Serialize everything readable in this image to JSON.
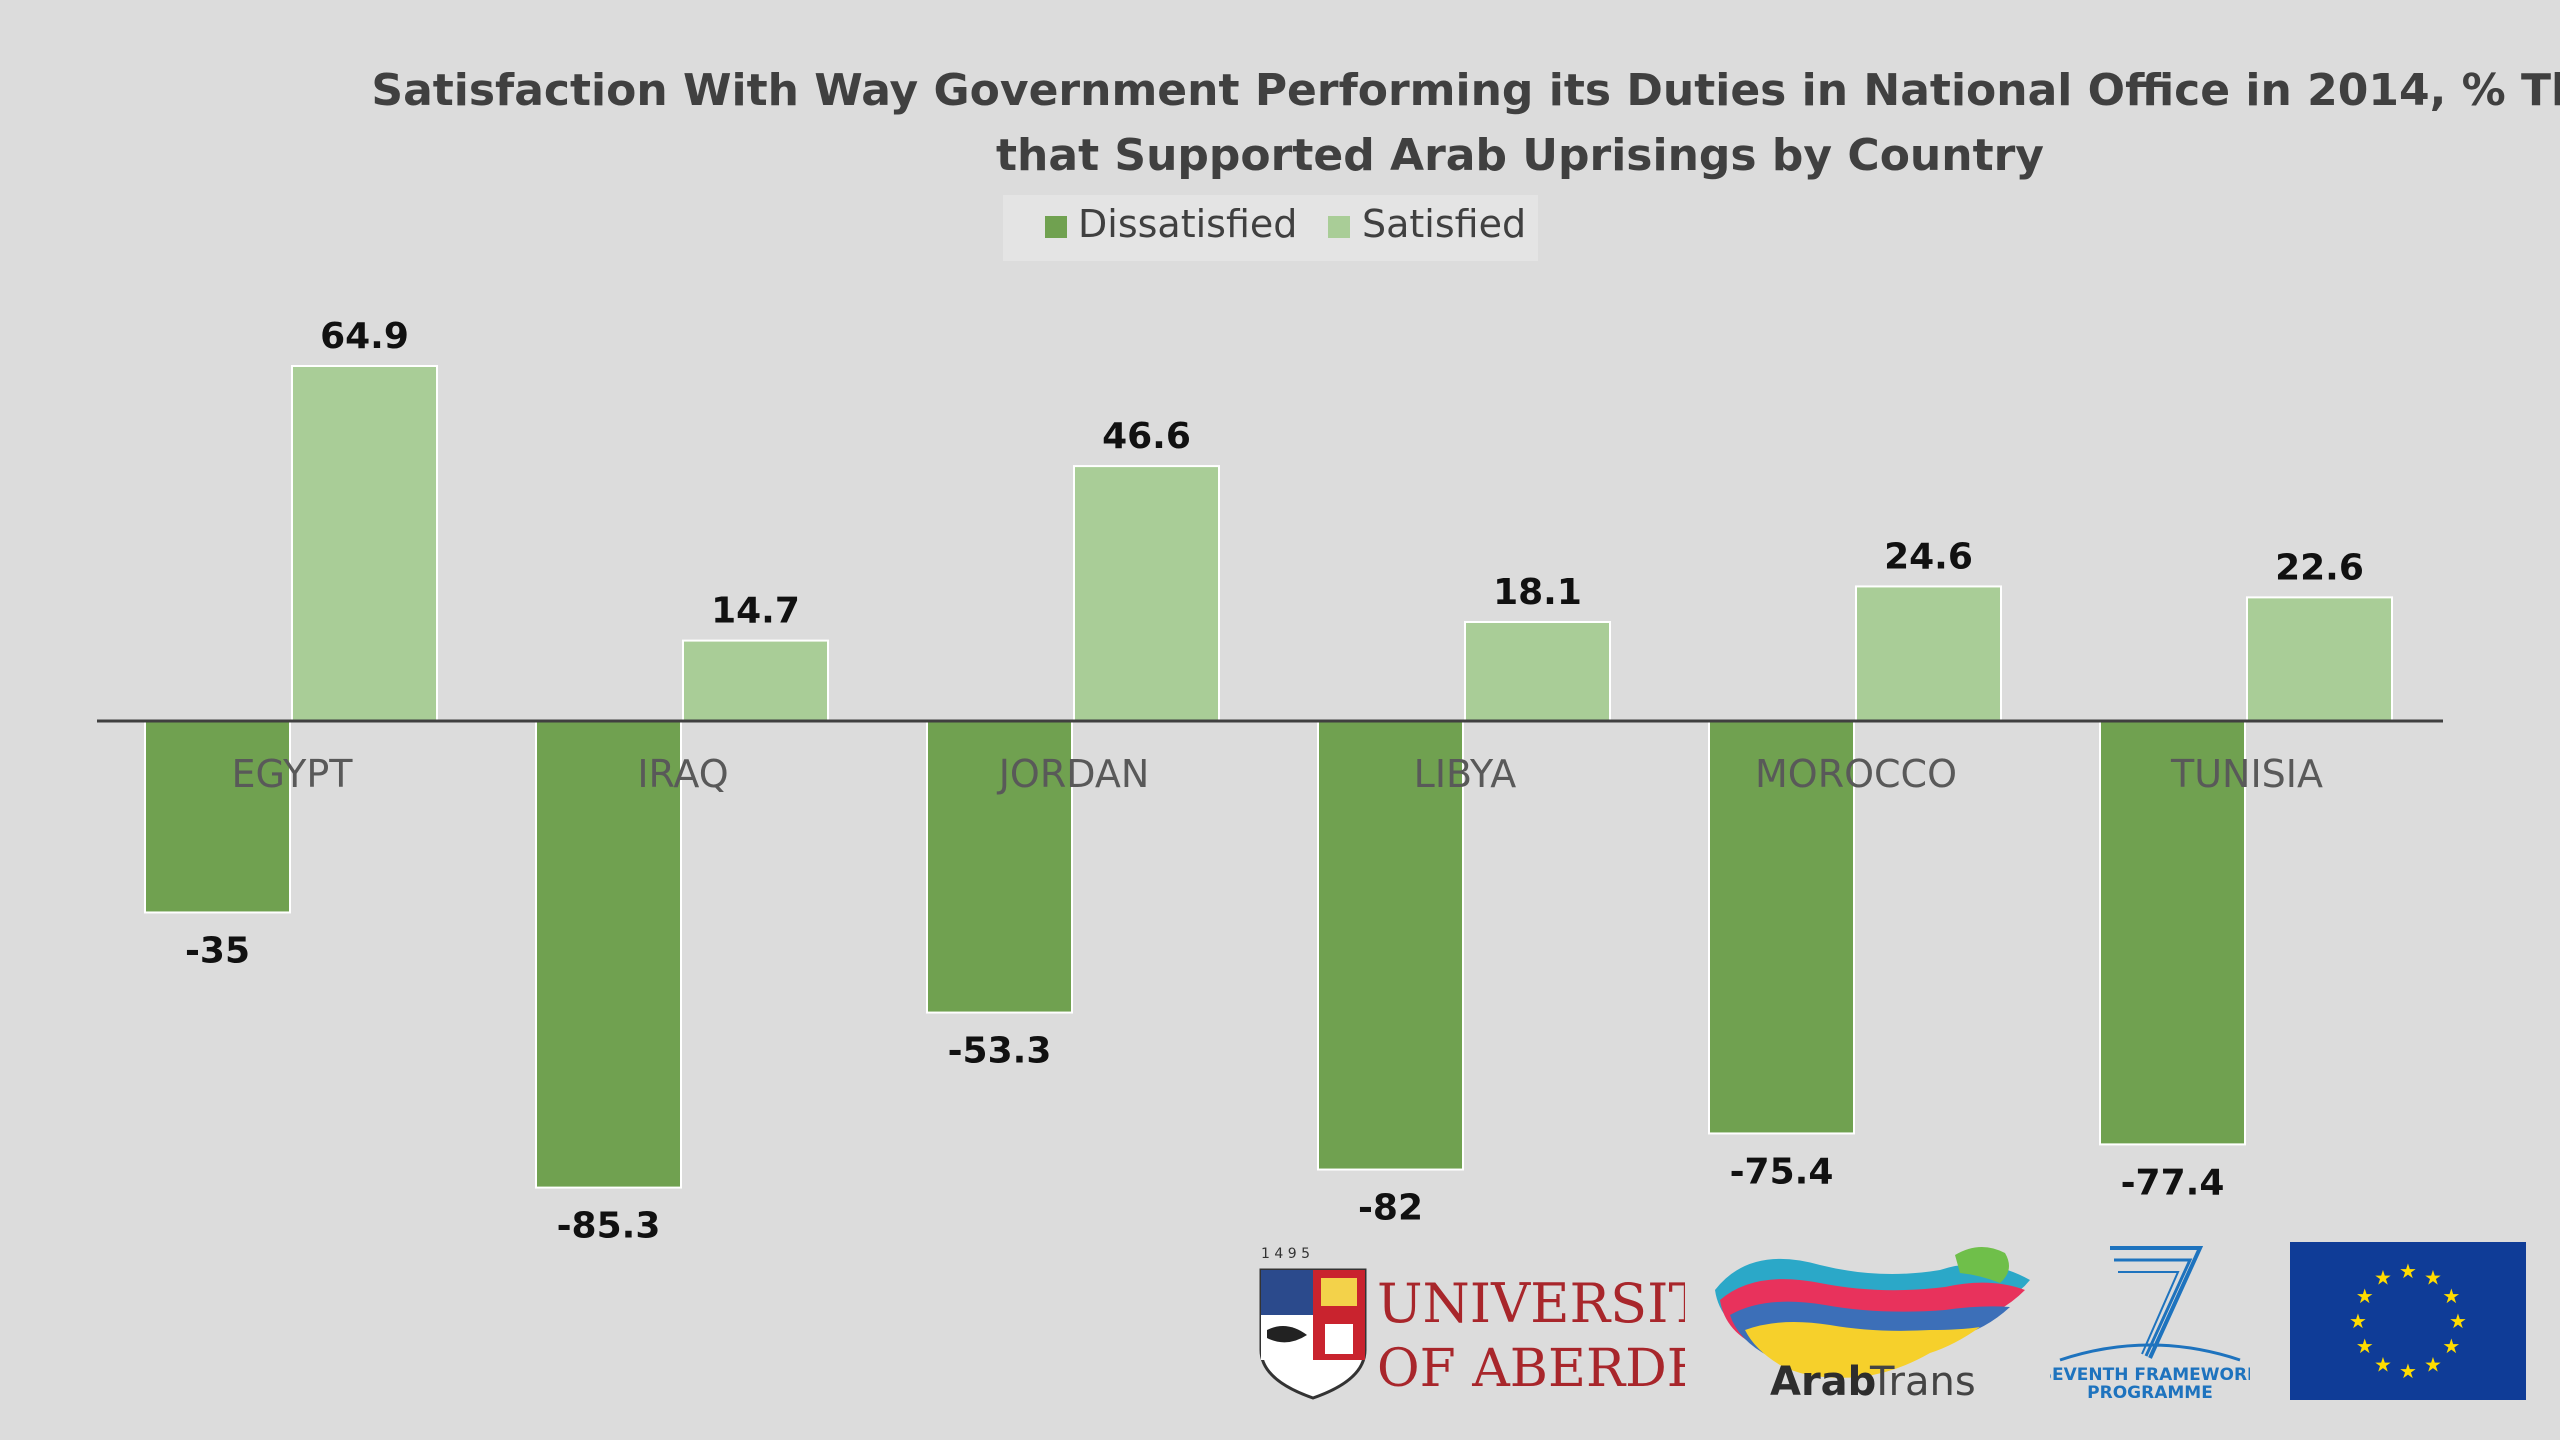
{
  "chart_data": {
    "type": "bar",
    "title": "Satisfaction With Way Government Performing its Duties in National Office in 2014, % Those that Supported Arab Uprisings by Country",
    "title_lines": [
      "Satisfaction With Way Government Performing its Duties in National Office in 2014, % Those",
      "that Supported Arab Uprisings by Country"
    ],
    "categories": [
      "EGYPT",
      "IRAQ",
      "JORDAN",
      "LIBYA",
      "MOROCCO",
      "TUNISIA"
    ],
    "series": [
      {
        "name": "Dissatisfied",
        "values": [
          -35,
          -85.3,
          -53.3,
          -82,
          -75.4,
          -77.4
        ],
        "labels": [
          "-35",
          "-85.3",
          "-53.3",
          "-82",
          "-75.4",
          "-77.4"
        ],
        "color": "#70a150"
      },
      {
        "name": "Satisfied",
        "values": [
          64.9,
          14.7,
          46.6,
          18.1,
          24.6,
          22.6
        ],
        "labels": [
          "64.9",
          "14.7",
          "46.6",
          "18.1",
          "24.6",
          "22.6"
        ],
        "color": "#a9cd97"
      }
    ],
    "legend_position": "top",
    "grid": false,
    "ylim": [
      -90,
      70
    ],
    "xlabel": "",
    "ylabel": ""
  },
  "logos": {
    "aberdeen": {
      "year": "1 4 9 5",
      "line1": "UNIVERSITY",
      "line2": "OF ABERDEEN"
    },
    "arabtrans": {
      "bold": "Arab",
      "light": "Trans"
    },
    "fp7": {
      "line1": "SEVENTH FRAMEWORK",
      "line2": "PROGRAMME"
    },
    "eu": {}
  },
  "colors": {
    "background": "#dcdcdc",
    "axis": "#404040",
    "eu_blue": "#0f3c97",
    "eu_star": "#ffdd00"
  }
}
